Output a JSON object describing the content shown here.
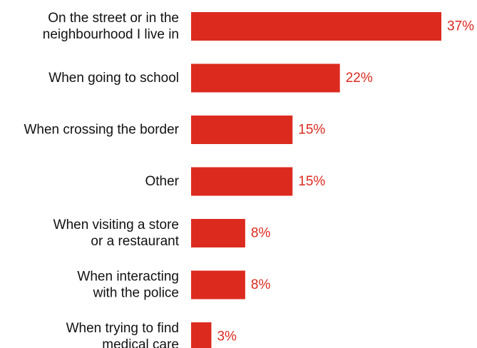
{
  "chart_data": {
    "type": "bar",
    "orientation": "horizontal",
    "categories": [
      [
        "On the street or in the",
        "neighbourhood I live in"
      ],
      [
        "When going to school"
      ],
      [
        "When crossing the border"
      ],
      [
        "Other"
      ],
      [
        "When visiting a store",
        "or a restaurant"
      ],
      [
        "When interacting",
        "with the police"
      ],
      [
        "When trying to find",
        "medical care"
      ]
    ],
    "values": [
      37,
      22,
      15,
      15,
      8,
      8,
      3
    ],
    "value_labels": [
      "37%",
      "22%",
      "15%",
      "15%",
      "8%",
      "8%",
      "3%"
    ],
    "unit": "%",
    "xlim": [
      0,
      37
    ],
    "grid": false,
    "legend": "none",
    "title": "",
    "xlabel": "",
    "ylabel": ""
  },
  "colors": {
    "bar": "#dc2a1f",
    "value_label": "#dc2a1f",
    "category_label": "#111111"
  }
}
